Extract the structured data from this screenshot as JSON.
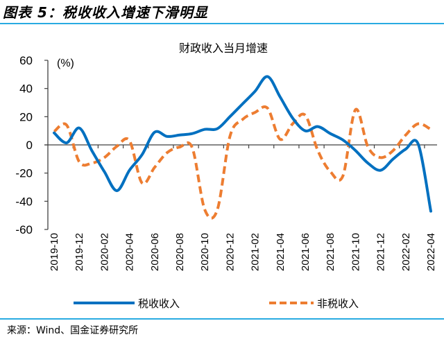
{
  "figure": {
    "title": "图表 5：税收收入增速下滑明显",
    "source": "来源：Wind、国金证券研究所"
  },
  "colors": {
    "tax": "#0070c0",
    "nontax": "#ed7d31",
    "rule": "#29abe2",
    "axis": "#404040"
  },
  "chart_data": {
    "type": "line",
    "title": "财政收入当月增速",
    "ylabel": "(%)",
    "xlabel": "",
    "ylim": [
      -60,
      60
    ],
    "yticks": [
      60,
      40,
      20,
      0,
      -20,
      -40,
      -60
    ],
    "grid": false,
    "legend_position": "bottom",
    "smooth": true,
    "x": [
      "2019-10",
      "2019-11",
      "2019-12",
      "2020-01",
      "2020-02",
      "2020-03",
      "2020-04",
      "2020-05",
      "2020-06",
      "2020-07",
      "2020-08",
      "2020-09",
      "2020-10",
      "2020-11",
      "2020-12",
      "2021-01",
      "2021-02",
      "2021-03",
      "2021-04",
      "2021-05",
      "2021-06",
      "2021-07",
      "2021-08",
      "2021-09",
      "2021-10",
      "2021-11",
      "2021-12",
      "2022-01",
      "2022-02",
      "2022-03",
      "2022-04"
    ],
    "xtick_labels": [
      "2019-10",
      "2019-12",
      "2020-02",
      "2020-04",
      "2020-06",
      "2020-08",
      "2020-10",
      "2020-12",
      "2021-02",
      "2021-04",
      "2021-06",
      "2021-08",
      "2021-10",
      "2021-12",
      "2022-02",
      "2022-04"
    ],
    "series": [
      {
        "name": "税收收入",
        "style": "solid",
        "values": [
          8.5,
          1.5,
          12,
          -4,
          -19,
          -32.5,
          -18,
          -7,
          9,
          6,
          7,
          8,
          11,
          11.5,
          20,
          29,
          38,
          48.5,
          34,
          19,
          10,
          13,
          8,
          3.5,
          -4,
          -13,
          -18,
          -10,
          -3,
          0.5,
          -47
        ]
      },
      {
        "name": "非税收入",
        "style": "dashed",
        "values": [
          9.5,
          14,
          -12,
          -13,
          -9,
          -1,
          3,
          -27,
          -16,
          -5.5,
          -1.5,
          -2,
          -46,
          -46,
          6,
          18,
          23,
          26,
          4,
          15,
          21,
          -4,
          -19,
          -22,
          25,
          -1.5,
          -9,
          -4,
          7,
          15,
          11
        ]
      }
    ]
  }
}
